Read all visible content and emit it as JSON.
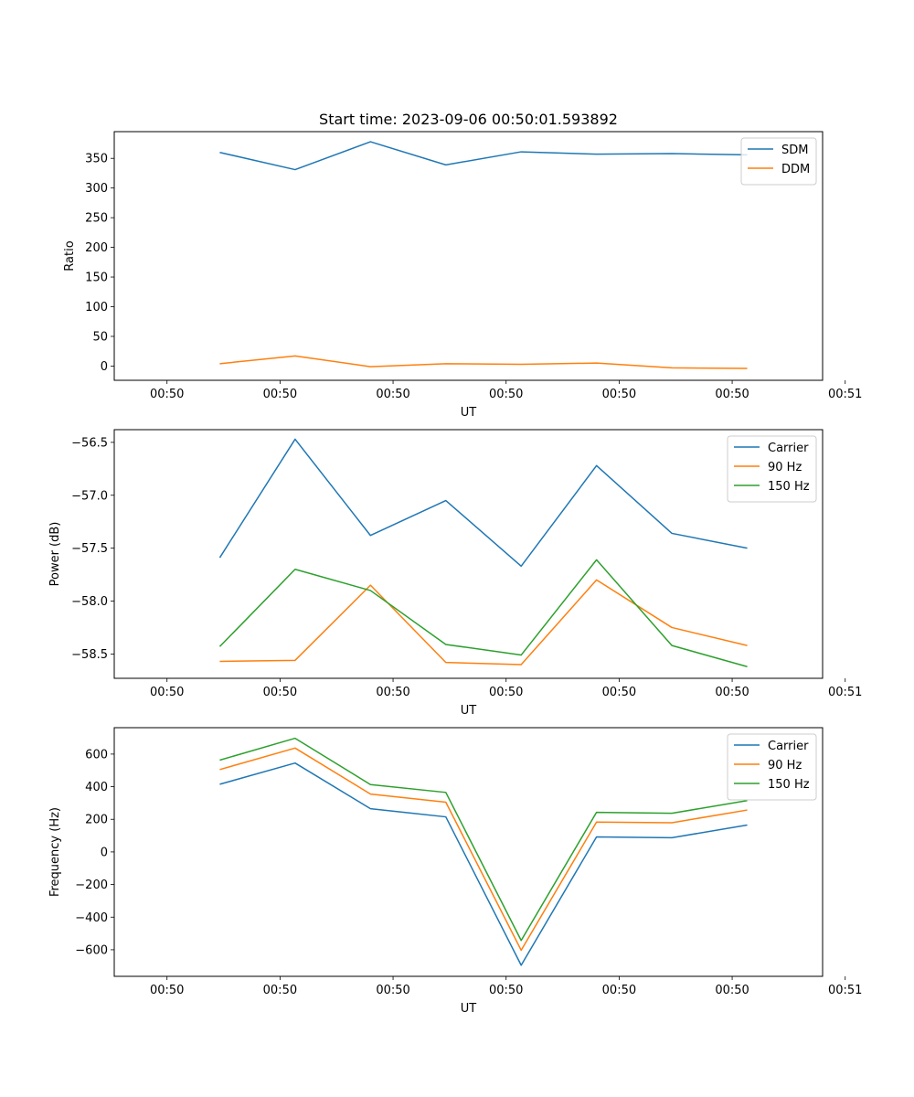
{
  "chart_data": [
    {
      "type": "line",
      "title": "Start time: 2023-09-06 00:50:01.593892",
      "xlabel": "UT",
      "ylabel": "Ratio",
      "xlim": [
        -0.7,
        8.7
      ],
      "xticks": [
        0,
        1.5,
        3,
        4.5,
        6,
        7.5,
        9
      ],
      "xtick_labels": [
        "00:50",
        "00:50",
        "00:50",
        "00:50",
        "00:50",
        "00:50",
        "00:51"
      ],
      "x": [
        0.7,
        1.7,
        2.7,
        3.7,
        4.7,
        5.7,
        6.7,
        7.7
      ],
      "ylim": [
        -24,
        395
      ],
      "yticks": [
        0,
        50,
        100,
        150,
        200,
        250,
        300,
        350
      ],
      "ytick_labels": [
        "0",
        "50",
        "100",
        "150",
        "200",
        "250",
        "300",
        "350"
      ],
      "legend": "top-right",
      "series": [
        {
          "name": "SDM",
          "color": "#1f77b4",
          "values": [
            360,
            331,
            378,
            339,
            361,
            357,
            358,
            356
          ]
        },
        {
          "name": "DDM",
          "color": "#ff7f0e",
          "values": [
            4,
            17,
            -1,
            4,
            3,
            5,
            -3,
            -4
          ]
        }
      ]
    },
    {
      "type": "line",
      "title": "",
      "xlabel": "UT",
      "ylabel": "Power (dB)",
      "xlim": [
        -0.7,
        8.7
      ],
      "xticks": [
        0,
        1.5,
        3,
        4.5,
        6,
        7.5,
        9
      ],
      "xtick_labels": [
        "00:50",
        "00:50",
        "00:50",
        "00:50",
        "00:50",
        "00:50",
        "00:51"
      ],
      "x": [
        0.7,
        1.7,
        2.7,
        3.7,
        4.7,
        5.7,
        6.7,
        7.7
      ],
      "ylim": [
        -58.73,
        -56.38
      ],
      "yticks": [
        -58.5,
        -58.0,
        -57.5,
        -57.0,
        -56.5
      ],
      "ytick_labels": [
        "−58.5",
        "−58.0",
        "−57.5",
        "−57.0",
        "−56.5"
      ],
      "legend": "top-right",
      "series": [
        {
          "name": "Carrier",
          "color": "#1f77b4",
          "values": [
            -57.59,
            -56.47,
            -57.38,
            -57.05,
            -57.67,
            -56.72,
            -57.36,
            -57.5
          ]
        },
        {
          "name": "90 Hz",
          "color": "#ff7f0e",
          "values": [
            -58.57,
            -58.56,
            -57.85,
            -58.58,
            -58.6,
            -57.8,
            -58.25,
            -58.42
          ]
        },
        {
          "name": "150 Hz",
          "color": "#2ca02c",
          "values": [
            -58.43,
            -57.7,
            -57.9,
            -58.41,
            -58.51,
            -57.61,
            -58.42,
            -58.62
          ]
        }
      ]
    },
    {
      "type": "line",
      "title": "",
      "xlabel": "UT",
      "ylabel": "Frequency (Hz)",
      "xlim": [
        -0.7,
        8.7
      ],
      "xticks": [
        0,
        1.5,
        3,
        4.5,
        6,
        7.5,
        9
      ],
      "xtick_labels": [
        "00:50",
        "00:50",
        "00:50",
        "00:50",
        "00:50",
        "00:50",
        "00:51"
      ],
      "x": [
        0.7,
        1.7,
        2.7,
        3.7,
        4.7,
        5.7,
        6.7,
        7.7
      ],
      "ylim": [
        -763,
        762
      ],
      "yticks": [
        -600,
        -400,
        -200,
        0,
        200,
        400,
        600
      ],
      "ytick_labels": [
        "−600",
        "−400",
        "−200",
        "0",
        "200",
        "400",
        "600"
      ],
      "legend": "top-right",
      "series": [
        {
          "name": "Carrier",
          "color": "#1f77b4",
          "values": [
            415,
            545,
            265,
            215,
            -695,
            92,
            87,
            165
          ]
        },
        {
          "name": "90 Hz",
          "color": "#ff7f0e",
          "values": [
            505,
            637,
            355,
            305,
            -603,
            183,
            179,
            257
          ]
        },
        {
          "name": "150 Hz",
          "color": "#2ca02c",
          "values": [
            563,
            697,
            413,
            365,
            -543,
            243,
            237,
            315
          ]
        }
      ]
    }
  ]
}
